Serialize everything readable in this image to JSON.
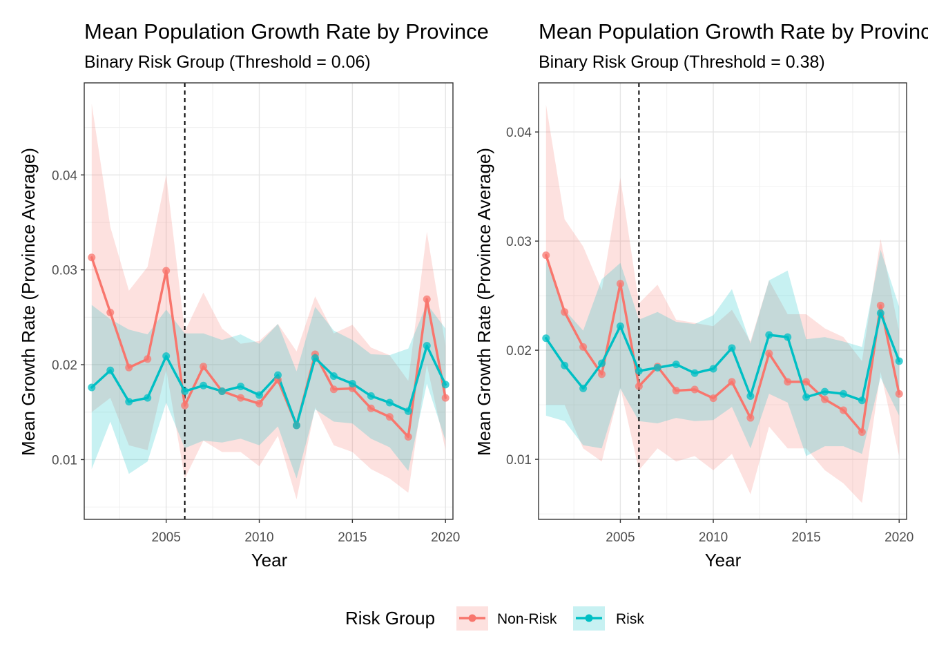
{
  "legend": {
    "title": "Risk Group",
    "items": [
      {
        "label": "Non-Risk",
        "color": "#F8766D"
      },
      {
        "label": "Risk",
        "color": "#00BFC4"
      }
    ]
  },
  "chart_data": [
    {
      "type": "line",
      "title": "Mean Population Growth Rate by Province",
      "subtitle": "Binary Risk Group (Threshold = 0.06)",
      "xlabel": "Year",
      "ylabel": "Mean Growth Rate (Province Average)",
      "xlim": [
        2000.6,
        2020.4
      ],
      "ylim": [
        0.0037,
        0.0497
      ],
      "xticks": [
        2005,
        2010,
        2015,
        2020
      ],
      "yticks": [
        0.01,
        0.02,
        0.03,
        0.04
      ],
      "ytick_labels": [
        "0.01",
        "0.02",
        "0.03",
        "0.04"
      ],
      "vline": 2006,
      "grid": true,
      "x": [
        2001,
        2002,
        2003,
        2004,
        2005,
        2006,
        2007,
        2008,
        2009,
        2010,
        2011,
        2012,
        2013,
        2014,
        2015,
        2016,
        2017,
        2018,
        2019,
        2020
      ],
      "series": [
        {
          "name": "Non-Risk",
          "color": "#F8766D",
          "values": [
            0.0313,
            0.0255,
            0.0197,
            0.0206,
            0.0299,
            0.0157,
            0.0198,
            0.0172,
            0.0165,
            0.0159,
            0.0184,
            0.0136,
            0.0211,
            0.0174,
            0.0175,
            0.0154,
            0.0145,
            0.0124,
            0.0269,
            0.0165
          ],
          "lower": [
            0.015,
            0.0165,
            0.0115,
            0.011,
            0.0195,
            0.008,
            0.012,
            0.0108,
            0.0108,
            0.0093,
            0.0125,
            0.0058,
            0.0155,
            0.0115,
            0.0108,
            0.009,
            0.008,
            0.0065,
            0.02,
            0.011
          ],
          "upper": [
            0.0475,
            0.0345,
            0.0278,
            0.0303,
            0.04,
            0.0235,
            0.0276,
            0.0238,
            0.0222,
            0.0225,
            0.0243,
            0.0214,
            0.0272,
            0.0233,
            0.0242,
            0.0218,
            0.021,
            0.0183,
            0.034,
            0.022
          ]
        },
        {
          "name": "Risk",
          "color": "#00BFC4",
          "values": [
            0.0176,
            0.0194,
            0.0161,
            0.0165,
            0.0209,
            0.0172,
            0.0178,
            0.0172,
            0.0177,
            0.0168,
            0.0189,
            0.0136,
            0.0207,
            0.0188,
            0.018,
            0.0167,
            0.016,
            0.0151,
            0.022,
            0.0179
          ],
          "lower": [
            0.009,
            0.014,
            0.0085,
            0.0098,
            0.016,
            0.0112,
            0.012,
            0.0118,
            0.0122,
            0.0115,
            0.0135,
            0.008,
            0.0153,
            0.014,
            0.0138,
            0.0122,
            0.0113,
            0.0088,
            0.018,
            0.012
          ],
          "upper": [
            0.0263,
            0.0248,
            0.0237,
            0.0232,
            0.0258,
            0.0233,
            0.0233,
            0.0226,
            0.0232,
            0.0222,
            0.0243,
            0.0193,
            0.0261,
            0.0236,
            0.0226,
            0.0211,
            0.021,
            0.0217,
            0.0264,
            0.0238
          ]
        }
      ]
    },
    {
      "type": "line",
      "title": "Mean Population Growth Rate by Province",
      "subtitle": "Binary Risk Group (Threshold = 0.38)",
      "xlabel": "Year",
      "ylabel": "Mean Growth Rate (Province Average)",
      "xlim": [
        2000.6,
        2020.4
      ],
      "ylim": [
        0.0045,
        0.0445
      ],
      "xticks": [
        2005,
        2010,
        2015,
        2020
      ],
      "yticks": [
        0.01,
        0.02,
        0.03,
        0.04
      ],
      "ytick_labels": [
        "0.01",
        "0.02",
        "0.03",
        "0.04"
      ],
      "vline": 2006,
      "grid": true,
      "x": [
        2001,
        2002,
        2003,
        2004,
        2005,
        2006,
        2007,
        2008,
        2009,
        2010,
        2011,
        2012,
        2013,
        2014,
        2015,
        2016,
        2017,
        2018,
        2019,
        2020
      ],
      "series": [
        {
          "name": "Non-Risk",
          "color": "#F8766D",
          "values": [
            0.0287,
            0.0235,
            0.0203,
            0.0178,
            0.0261,
            0.0167,
            0.0185,
            0.0163,
            0.0164,
            0.0156,
            0.0171,
            0.0138,
            0.0197,
            0.0171,
            0.0171,
            0.0155,
            0.0145,
            0.0125,
            0.0241,
            0.016
          ],
          "lower": [
            0.015,
            0.015,
            0.011,
            0.0098,
            0.0166,
            0.009,
            0.011,
            0.0098,
            0.0103,
            0.009,
            0.0105,
            0.0068,
            0.013,
            0.011,
            0.011,
            0.009,
            0.0078,
            0.006,
            0.018,
            0.0103
          ],
          "upper": [
            0.0425,
            0.032,
            0.0295,
            0.0255,
            0.0358,
            0.0243,
            0.026,
            0.0228,
            0.0225,
            0.0222,
            0.0237,
            0.0208,
            0.0264,
            0.0233,
            0.0233,
            0.022,
            0.0212,
            0.019,
            0.0302,
            0.0217
          ]
        },
        {
          "name": "Risk",
          "color": "#00BFC4",
          "values": [
            0.0211,
            0.0186,
            0.0165,
            0.0188,
            0.0222,
            0.0181,
            0.0184,
            0.0187,
            0.0179,
            0.0183,
            0.0202,
            0.0158,
            0.0214,
            0.0212,
            0.0157,
            0.0162,
            0.016,
            0.0154,
            0.0234,
            0.019
          ],
          "lower": [
            0.014,
            0.0135,
            0.0113,
            0.011,
            0.0165,
            0.0135,
            0.0133,
            0.0138,
            0.0135,
            0.0136,
            0.0148,
            0.011,
            0.016,
            0.0152,
            0.0103,
            0.0112,
            0.0112,
            0.0105,
            0.0175,
            0.014
          ],
          "upper": [
            0.0282,
            0.0237,
            0.0218,
            0.0265,
            0.028,
            0.0228,
            0.0235,
            0.0226,
            0.0224,
            0.0232,
            0.0256,
            0.0206,
            0.0264,
            0.0273,
            0.021,
            0.0212,
            0.0208,
            0.0203,
            0.0292,
            0.024
          ]
        }
      ]
    }
  ]
}
